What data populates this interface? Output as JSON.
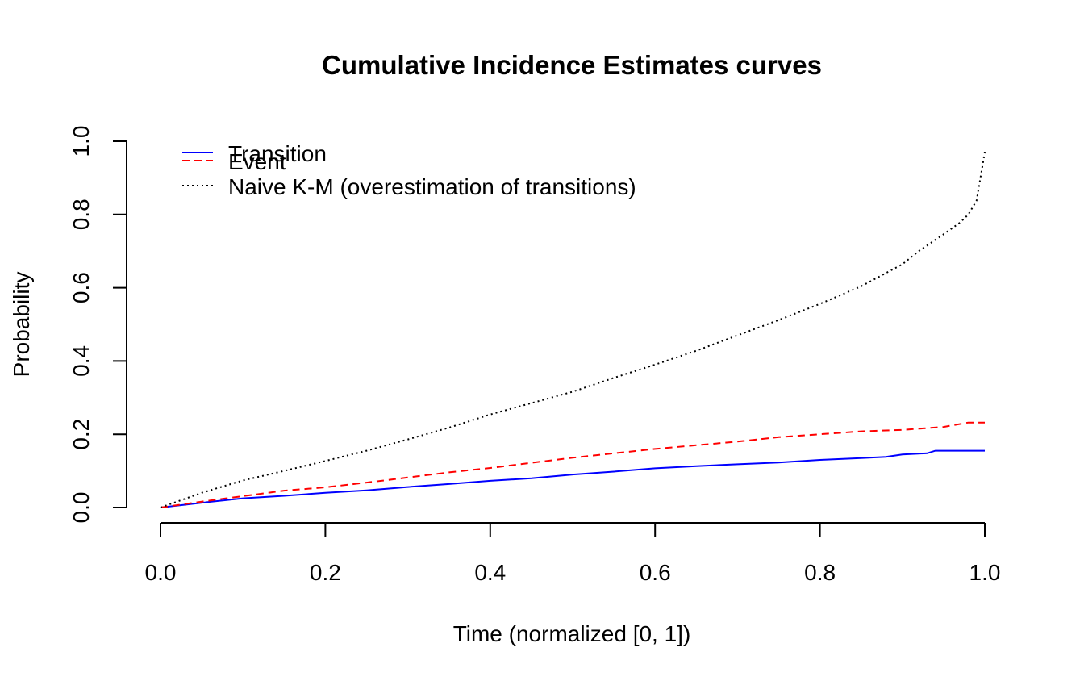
{
  "chart_data": {
    "type": "line",
    "title": "Cumulative Incidence Estimates curves",
    "xlabel": "Time (normalized [0, 1])",
    "ylabel": "Probability",
    "xlim": [
      0,
      1
    ],
    "ylim": [
      0,
      1
    ],
    "x_ticks": [
      "0.0",
      "0.2",
      "0.4",
      "0.6",
      "0.8",
      "1.0"
    ],
    "y_ticks": [
      "0.0",
      "0.2",
      "0.4",
      "0.6",
      "0.8",
      "1.0"
    ],
    "grid": false,
    "legend_position": "top-left",
    "series": [
      {
        "name": "Transition",
        "color": "#0000ff",
        "line_style": "solid",
        "x": [
          0.0,
          0.05,
          0.1,
          0.15,
          0.2,
          0.25,
          0.3,
          0.35,
          0.4,
          0.45,
          0.5,
          0.55,
          0.6,
          0.65,
          0.7,
          0.75,
          0.8,
          0.85,
          0.88,
          0.9,
          0.93,
          0.94,
          0.97,
          1.0
        ],
        "y": [
          0.0,
          0.013,
          0.025,
          0.032,
          0.04,
          0.047,
          0.056,
          0.064,
          0.073,
          0.08,
          0.09,
          0.098,
          0.107,
          0.113,
          0.118,
          0.123,
          0.13,
          0.135,
          0.138,
          0.145,
          0.148,
          0.155,
          0.155,
          0.155
        ]
      },
      {
        "name": "Event",
        "color": "#ff0000",
        "line_style": "dashed",
        "x": [
          0.0,
          0.05,
          0.1,
          0.15,
          0.2,
          0.25,
          0.3,
          0.35,
          0.4,
          0.45,
          0.5,
          0.55,
          0.6,
          0.65,
          0.7,
          0.75,
          0.8,
          0.85,
          0.9,
          0.95,
          0.98,
          1.0
        ],
        "y": [
          0.0,
          0.016,
          0.031,
          0.046,
          0.055,
          0.068,
          0.082,
          0.096,
          0.108,
          0.122,
          0.136,
          0.148,
          0.16,
          0.17,
          0.18,
          0.192,
          0.2,
          0.208,
          0.212,
          0.22,
          0.232,
          0.232
        ]
      },
      {
        "name": "Naive K-M (overestimation of transitions)",
        "color": "#000000",
        "line_style": "dotted",
        "x": [
          0.0,
          0.05,
          0.1,
          0.15,
          0.2,
          0.25,
          0.3,
          0.35,
          0.4,
          0.45,
          0.5,
          0.55,
          0.6,
          0.65,
          0.7,
          0.75,
          0.8,
          0.85,
          0.9,
          0.92,
          0.95,
          0.97,
          0.98,
          0.99,
          1.0
        ],
        "y": [
          0.0,
          0.04,
          0.074,
          0.1,
          0.127,
          0.155,
          0.186,
          0.218,
          0.254,
          0.285,
          0.316,
          0.354,
          0.39,
          0.428,
          0.47,
          0.512,
          0.556,
          0.604,
          0.664,
          0.7,
          0.746,
          0.778,
          0.8,
          0.838,
          0.97
        ]
      }
    ]
  }
}
